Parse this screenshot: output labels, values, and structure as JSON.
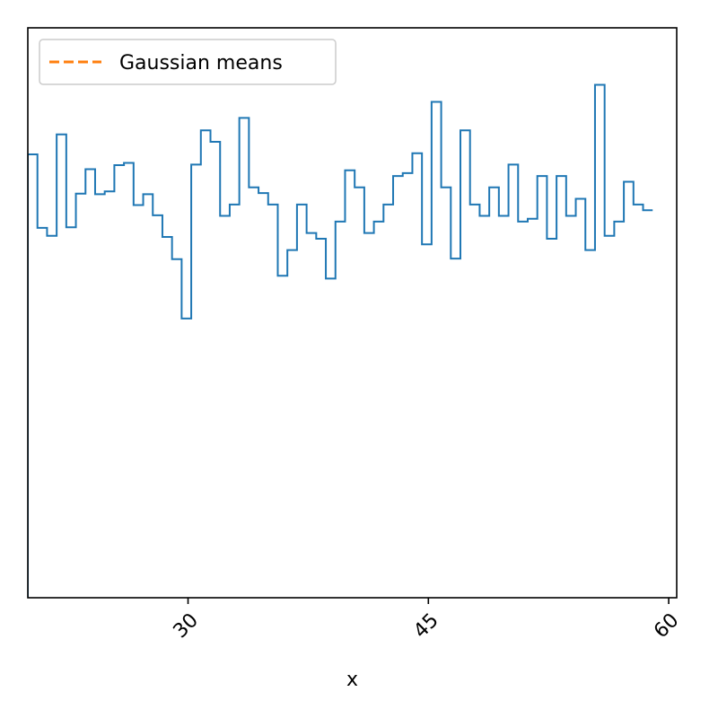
{
  "chart_data": {
    "type": "histogram-step",
    "title": "",
    "xlabel": "x",
    "ylabel": "",
    "xlim": [
      20,
      60.5
    ],
    "ylim": [
      0,
      100
    ],
    "x_ticks": [
      30,
      45,
      60
    ],
    "x_tick_labels": [
      "30",
      "45",
      "60"
    ],
    "y_ticks_visible": false,
    "bin_width": 0.6,
    "bin_start": 20,
    "legend": {
      "location": "upper left",
      "entries": [
        {
          "label": "Gaussian means",
          "style": "dashed",
          "color": "#ff7f0e"
        }
      ]
    },
    "series": [
      {
        "color": "#1f77b4",
        "values": [
          77.8,
          64.9,
          63.5,
          81.3,
          65.0,
          70.9,
          75.2,
          70.8,
          71.3,
          75.9,
          76.3,
          68.9,
          70.8,
          67.1,
          63.3,
          59.4,
          49.0,
          76.0,
          82.0,
          80.0,
          67.0,
          69.0,
          84.2,
          72.0,
          71.0,
          69.0,
          56.5,
          61.0,
          69.0,
          64.0,
          63.0,
          56.0,
          66.0,
          75.0,
          72.0,
          64.0,
          66.0,
          69.0,
          74.0,
          74.5,
          78.0,
          62.0,
          87.0,
          72.0,
          59.5,
          82.0,
          69.0,
          67.0,
          72.0,
          67.0,
          76.0,
          66.0,
          66.5,
          74.0,
          63.0,
          74.0,
          67.0,
          70.0,
          61.0,
          90.0,
          63.5,
          66.0,
          73.0,
          69.0,
          68.0
        ]
      }
    ]
  }
}
